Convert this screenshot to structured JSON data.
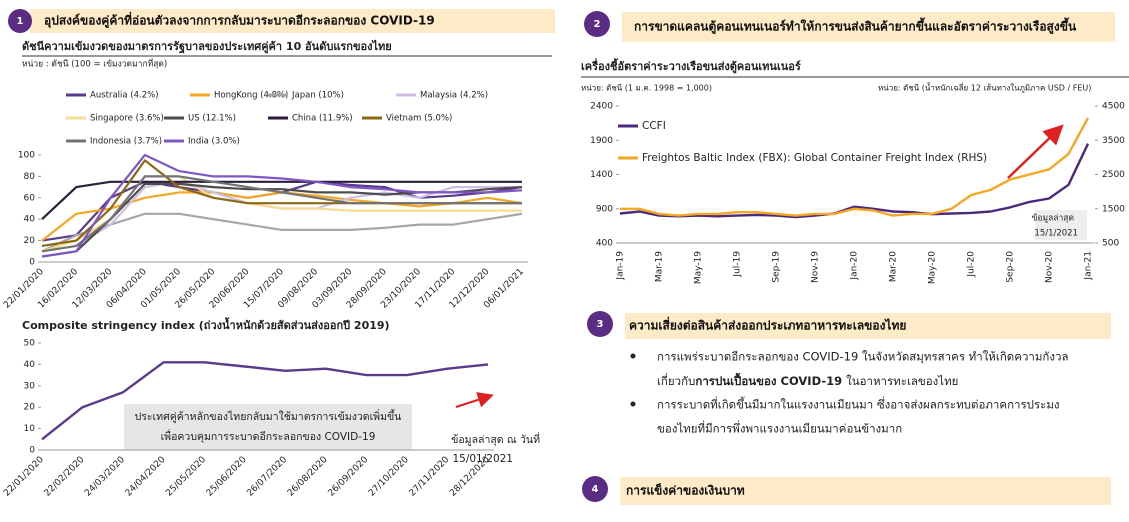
{
  "sections": [
    {
      "number": "1",
      "title": "อุปสงค์ของคู่ค้าที่อ่อนตัวลงจากการกลับมาระบาดอีกระลอกของ COVID-19"
    },
    {
      "number": "2",
      "title": "การขาดแคลนตู้คอนเทนเนอร์ทำให้การขนส่งสินค้ายากขึ้นและอัตราค่าระวางเรือสูงขึ้น"
    },
    {
      "number": "3",
      "title": "ความเสี่ยงต่อสินค้าส่งออกประเภทอาหารทะเลของไทย",
      "bullets": [
        {
          "line1": "การแพร่ระบาดอีกระลอกของ COVID-19 ในจังหวัดสมุทรสาคร ทำให้เกิดความกังวล",
          "line2": "เกี่ยวกับ",
          "emphasis": "การปนเปื้อนของ COVID-19",
          "line2_end": "ในอาหารทะเลของไทย"
        },
        {
          "line1": "การระบาดที่เกิดขึ้นมีมากในแรงงานเมียนมา ซึ่งอาจส่งผลกระทบต่อภาคการประมง",
          "line2": "ของไทยที่มีการพึ่งพาแรงงานเมียนมาค่อนข้างมาก"
        }
      ]
    },
    {
      "number": "4",
      "title": "การแข็งค่าของเงินบาท"
    }
  ],
  "chart_data": [
    {
      "type": "line",
      "title": "ดัชนีความเข้มงวดของมาตรการรัฐบาลของประเทศคู่ค้า 10 อันดับแรกของไทย",
      "subtitle": "หน่วย : ดัชนี (100 = เข้มงวดมากที่สุด)",
      "categories": [
        "22/01/2020",
        "16/02/2020",
        "12/03/2020",
        "06/04/2020",
        "01/05/2020",
        "26/05/2020",
        "20/06/2020",
        "15/07/2020",
        "09/08/2020",
        "03/09/2020",
        "28/09/2020",
        "23/10/2020",
        "17/11/2020",
        "12/12/2020",
        "06/01/2021"
      ],
      "ylim": [
        0,
        100
      ],
      "yticks": [
        0,
        20,
        40,
        60,
        80,
        100
      ],
      "series": [
        {
          "name": "Australia (4.2%)",
          "color": "#5b3a8c",
          "values": [
            20,
            25,
            60,
            75,
            70,
            65,
            60,
            65,
            75,
            72,
            70,
            60,
            62,
            65,
            70
          ]
        },
        {
          "name": "HongKong (4.8%)",
          "color": "#f5a623",
          "values": [
            20,
            45,
            50,
            60,
            65,
            65,
            60,
            65,
            62,
            58,
            55,
            52,
            55,
            60,
            55
          ]
        },
        {
          "name": "Japan (10%)",
          "color": "#a6a6a6",
          "values": [
            10,
            25,
            35,
            45,
            45,
            40,
            35,
            30,
            30,
            30,
            32,
            35,
            35,
            40,
            45
          ]
        },
        {
          "name": "Malaysia (4.2%)",
          "color": "#cdbfe3",
          "values": [
            10,
            15,
            35,
            70,
            75,
            65,
            55,
            50,
            50,
            60,
            65,
            60,
            70,
            70,
            70
          ]
        },
        {
          "name": "Singapore (3.6%)",
          "color": "#f7dc94",
          "values": [
            10,
            20,
            40,
            80,
            80,
            60,
            55,
            50,
            50,
            48,
            48,
            48,
            48,
            48,
            48
          ]
        },
        {
          "name": "US (12.1%)",
          "color": "#4d4d4d",
          "values": [
            5,
            10,
            40,
            73,
            73,
            70,
            68,
            68,
            65,
            65,
            63,
            65,
            65,
            68,
            70
          ]
        },
        {
          "name": "China (11.9%)",
          "color": "#2b1d3d",
          "values": [
            40,
            70,
            75,
            75,
            75,
            75,
            75,
            75,
            75,
            75,
            75,
            75,
            75,
            75,
            75
          ]
        },
        {
          "name": "Vietnam (5.0%)",
          "color": "#8b6914",
          "values": [
            15,
            20,
            50,
            95,
            70,
            60,
            55,
            55,
            55,
            55,
            55,
            55,
            55,
            55,
            55
          ]
        },
        {
          "name": "Indonesia (3.7%)",
          "color": "#737373",
          "values": [
            10,
            15,
            40,
            80,
            80,
            75,
            70,
            65,
            60,
            55,
            55,
            55,
            55,
            55,
            55
          ]
        },
        {
          "name": "India (3.0%)",
          "color": "#7e57c2",
          "values": [
            5,
            10,
            60,
            100,
            85,
            80,
            80,
            78,
            75,
            70,
            68,
            65,
            65,
            65,
            67
          ]
        }
      ]
    },
    {
      "type": "line",
      "title": "Composite stringency index (ถ่วงน้ำหนักด้วยสัดส่วนส่งออกปี 2019)",
      "categories": [
        "22/01/2020",
        "22/02/2020",
        "24/03/2020",
        "24/04/2020",
        "25/05/2020",
        "25/06/2020",
        "26/07/2020",
        "26/08/2020",
        "26/09/2020",
        "27/10/2020",
        "27/11/2020",
        "28/12/2020"
      ],
      "ylim": [
        0,
        50
      ],
      "yticks": [
        0,
        10,
        20,
        30,
        40,
        50
      ],
      "annotations": [
        "ประเทศคู่ค้าหลักของไทยกลับมาใช้มาตรการเข้มงวดเพิ่มขึ้น",
        "เพื่อควบคุมการระบาดอีกระลอกของ COVID-19",
        "ข้อมูลล่าสุด ณ วันที่",
        "15/01/2021"
      ],
      "series": [
        {
          "color": "#5b3a8c",
          "values": [
            5,
            20,
            27,
            41,
            41,
            39,
            37,
            38,
            35,
            35,
            38,
            40
          ]
        }
      ]
    },
    {
      "type": "line",
      "title": "เครื่องชี้อัตราค่าระวางเรือขนส่งตู้คอนเทนเนอร์",
      "y_label": "หน่วย: ดัชนี (1 ม.ค. 1998 = 1,000)",
      "y2_label": "หน่วย: ดัชนี (น้ำหนักเฉลี่ย 12 เส้นทางในภูมิภาค USD / FEU)",
      "categories": [
        "Jan-19",
        null,
        "Mar-19",
        null,
        "May-19",
        null,
        "Jul-19",
        null,
        "Sep-19",
        null,
        "Nov-19",
        null,
        "Jan-20",
        null,
        "Mar-20",
        null,
        "May-20",
        null,
        "Jul-20",
        null,
        "Sep-20",
        null,
        "Nov-20",
        null,
        "Jan-21"
      ],
      "ylim": [
        400,
        2400
      ],
      "yticks": [
        400,
        900,
        1400,
        1900,
        2400
      ],
      "y2lim": [
        500,
        4500
      ],
      "y2ticks": [
        500,
        1500,
        2500,
        3500,
        4500
      ],
      "annotations": [
        "ข้อมูลล่าสุด",
        "15/1/2021"
      ],
      "series": [
        {
          "name": "CCFI",
          "color": "#4b2a7b",
          "values": [
            830,
            860,
            800,
            790,
            800,
            790,
            800,
            810,
            800,
            780,
            800,
            830,
            930,
            900,
            860,
            850,
            820,
            830,
            840,
            860,
            920,
            1000,
            1050,
            1250,
            1850
          ]
        },
        {
          "name": "Freightos Baltic Index (FBX): Global Container Freight Index (RHS)",
          "color": "#f5a623",
          "axis": "y2",
          "values": [
            1500,
            1500,
            1350,
            1300,
            1350,
            1350,
            1400,
            1400,
            1350,
            1300,
            1350,
            1350,
            1500,
            1450,
            1300,
            1350,
            1350,
            1500,
            1900,
            2050,
            2350,
            2500,
            2650,
            3100,
            4150
          ]
        }
      ]
    }
  ]
}
